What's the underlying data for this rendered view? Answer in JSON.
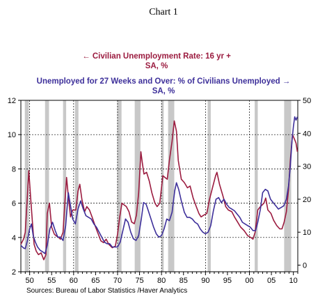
{
  "caption": "Chart 1",
  "source": "Sources:  Bureau of Labor Statistics /Haver Analytics",
  "chart_data": {
    "type": "line",
    "x_range": [
      1948,
      2011
    ],
    "x_ticks": [
      50,
      55,
      60,
      65,
      70,
      75,
      80,
      85,
      90,
      95,
      "00",
      "05",
      10
    ],
    "x_tick_values": [
      1950,
      1955,
      1960,
      1965,
      1970,
      1975,
      1980,
      1985,
      1990,
      1995,
      2000,
      2005,
      2010
    ],
    "y_left": {
      "range": [
        2,
        12
      ],
      "ticks": [
        2,
        4,
        6,
        8,
        10,
        12
      ]
    },
    "y_right": {
      "range": [
        -2,
        50
      ],
      "ticks": [
        0,
        10,
        20,
        30,
        40,
        50
      ]
    },
    "grid": "dashed",
    "recessions": [
      [
        1948.9,
        1949.8
      ],
      [
        1953.5,
        1954.4
      ],
      [
        1957.6,
        1958.3
      ],
      [
        1960.3,
        1961.1
      ],
      [
        1969.9,
        1970.9
      ],
      [
        1973.9,
        1975.2
      ],
      [
        1980.0,
        1980.5
      ],
      [
        1981.5,
        1982.9
      ],
      [
        1990.5,
        1991.2
      ],
      [
        2001.2,
        2001.9
      ],
      [
        2007.9,
        2009.5
      ]
    ],
    "series": [
      {
        "name": "Civilian Unemployment Rate: 16 yr +",
        "name_line2": "SA, %",
        "axis": "left",
        "color": "#9b1b3f",
        "points": [
          [
            1948.0,
            3.6
          ],
          [
            1948.6,
            3.9
          ],
          [
            1949.0,
            4.3
          ],
          [
            1949.5,
            6.5
          ],
          [
            1949.8,
            7.9
          ],
          [
            1950.2,
            6.4
          ],
          [
            1950.6,
            5.0
          ],
          [
            1951.0,
            3.6
          ],
          [
            1951.5,
            3.2
          ],
          [
            1952.0,
            3.0
          ],
          [
            1952.6,
            3.1
          ],
          [
            1953.2,
            2.7
          ],
          [
            1953.7,
            3.0
          ],
          [
            1954.0,
            5.4
          ],
          [
            1954.5,
            6.0
          ],
          [
            1955.0,
            4.6
          ],
          [
            1955.6,
            4.2
          ],
          [
            1956.0,
            4.1
          ],
          [
            1956.6,
            4.0
          ],
          [
            1957.0,
            3.9
          ],
          [
            1957.6,
            4.3
          ],
          [
            1958.0,
            6.0
          ],
          [
            1958.4,
            7.5
          ],
          [
            1958.8,
            6.4
          ],
          [
            1959.3,
            5.2
          ],
          [
            1959.8,
            5.6
          ],
          [
            1960.5,
            5.6
          ],
          [
            1961.0,
            6.7
          ],
          [
            1961.4,
            7.1
          ],
          [
            1961.9,
            6.2
          ],
          [
            1962.5,
            5.5
          ],
          [
            1963.0,
            5.8
          ],
          [
            1963.6,
            5.6
          ],
          [
            1964.2,
            5.2
          ],
          [
            1965.0,
            4.6
          ],
          [
            1965.6,
            4.2
          ],
          [
            1966.2,
            3.8
          ],
          [
            1966.8,
            3.7
          ],
          [
            1967.4,
            3.9
          ],
          [
            1968.0,
            3.6
          ],
          [
            1968.8,
            3.4
          ],
          [
            1969.5,
            3.5
          ],
          [
            1970.0,
            4.2
          ],
          [
            1970.5,
            5.2
          ],
          [
            1971.0,
            6.0
          ],
          [
            1971.5,
            5.9
          ],
          [
            1972.0,
            5.8
          ],
          [
            1972.6,
            5.5
          ],
          [
            1973.2,
            4.9
          ],
          [
            1973.8,
            4.8
          ],
          [
            1974.3,
            5.3
          ],
          [
            1974.8,
            6.6
          ],
          [
            1975.3,
            9.0
          ],
          [
            1975.6,
            8.4
          ],
          [
            1976.0,
            7.7
          ],
          [
            1976.6,
            7.8
          ],
          [
            1977.2,
            7.3
          ],
          [
            1977.8,
            6.6
          ],
          [
            1978.5,
            6.0
          ],
          [
            1979.0,
            5.8
          ],
          [
            1979.6,
            6.0
          ],
          [
            1980.3,
            7.6
          ],
          [
            1980.8,
            7.5
          ],
          [
            1981.3,
            7.4
          ],
          [
            1981.8,
            8.5
          ],
          [
            1982.4,
            9.6
          ],
          [
            1982.9,
            10.8
          ],
          [
            1983.4,
            10.2
          ],
          [
            1983.8,
            8.5
          ],
          [
            1984.5,
            7.4
          ],
          [
            1985.2,
            7.2
          ],
          [
            1985.9,
            6.9
          ],
          [
            1986.5,
            7.0
          ],
          [
            1987.2,
            6.3
          ],
          [
            1987.9,
            5.8
          ],
          [
            1988.5,
            5.4
          ],
          [
            1989.0,
            5.2
          ],
          [
            1989.6,
            5.3
          ],
          [
            1990.3,
            5.4
          ],
          [
            1990.9,
            6.2
          ],
          [
            1991.6,
            6.9
          ],
          [
            1992.3,
            7.6
          ],
          [
            1992.6,
            7.8
          ],
          [
            1993.2,
            7.1
          ],
          [
            1994.0,
            6.4
          ],
          [
            1994.6,
            5.8
          ],
          [
            1995.2,
            5.6
          ],
          [
            1996.0,
            5.5
          ],
          [
            1996.6,
            5.2
          ],
          [
            1997.3,
            4.9
          ],
          [
            1998.0,
            4.6
          ],
          [
            1998.8,
            4.4
          ],
          [
            1999.6,
            4.1
          ],
          [
            2000.3,
            4.0
          ],
          [
            2000.8,
            3.9
          ],
          [
            2001.3,
            4.3
          ],
          [
            2001.9,
            5.6
          ],
          [
            2002.5,
            5.8
          ],
          [
            2003.3,
            6.0
          ],
          [
            2003.7,
            6.3
          ],
          [
            2004.2,
            5.6
          ],
          [
            2004.9,
            5.4
          ],
          [
            2005.5,
            5.0
          ],
          [
            2006.2,
            4.7
          ],
          [
            2006.9,
            4.5
          ],
          [
            2007.4,
            4.5
          ],
          [
            2007.9,
            4.9
          ],
          [
            2008.4,
            5.5
          ],
          [
            2008.9,
            6.8
          ],
          [
            2009.3,
            8.5
          ],
          [
            2009.8,
            10.0
          ],
          [
            2010.3,
            9.7
          ],
          [
            2010.6,
            9.5
          ],
          [
            2010.9,
            9.0
          ]
        ]
      },
      {
        "name": "Unemployed for 27 Weeks and Over: % of Civilians Unemployed",
        "name_line2": "SA, %",
        "axis": "right",
        "color": "#3d2f9a",
        "points": [
          [
            1948.0,
            6.0
          ],
          [
            1948.6,
            5.2
          ],
          [
            1949.0,
            5.0
          ],
          [
            1949.5,
            7.5
          ],
          [
            1950.0,
            11.0
          ],
          [
            1950.4,
            12.5
          ],
          [
            1950.8,
            9.0
          ],
          [
            1951.3,
            7.0
          ],
          [
            1951.8,
            5.5
          ],
          [
            1952.4,
            4.5
          ],
          [
            1953.0,
            4.0
          ],
          [
            1953.5,
            3.5
          ],
          [
            1954.0,
            6.0
          ],
          [
            1954.6,
            11.0
          ],
          [
            1955.2,
            13.0
          ],
          [
            1955.8,
            10.5
          ],
          [
            1956.4,
            8.5
          ],
          [
            1957.0,
            8.5
          ],
          [
            1957.6,
            7.5
          ],
          [
            1958.2,
            12.0
          ],
          [
            1958.8,
            22.0
          ],
          [
            1959.3,
            18.0
          ],
          [
            1959.8,
            14.0
          ],
          [
            1960.4,
            12.5
          ],
          [
            1961.0,
            17.0
          ],
          [
            1961.6,
            19.5
          ],
          [
            1962.2,
            17.0
          ],
          [
            1962.8,
            15.0
          ],
          [
            1963.4,
            14.5
          ],
          [
            1964.0,
            14.0
          ],
          [
            1964.6,
            12.5
          ],
          [
            1965.2,
            11.5
          ],
          [
            1965.8,
            10.0
          ],
          [
            1966.4,
            8.5
          ],
          [
            1967.0,
            7.0
          ],
          [
            1967.6,
            6.5
          ],
          [
            1968.2,
            6.5
          ],
          [
            1968.8,
            5.5
          ],
          [
            1969.4,
            5.5
          ],
          [
            1970.0,
            5.5
          ],
          [
            1970.6,
            7.0
          ],
          [
            1971.2,
            10.5
          ],
          [
            1971.8,
            14.0
          ],
          [
            1972.4,
            13.0
          ],
          [
            1973.0,
            10.0
          ],
          [
            1973.6,
            8.0
          ],
          [
            1974.2,
            7.5
          ],
          [
            1974.8,
            9.0
          ],
          [
            1975.4,
            14.0
          ],
          [
            1975.9,
            19.0
          ],
          [
            1976.5,
            18.5
          ],
          [
            1977.0,
            16.5
          ],
          [
            1977.6,
            14.0
          ],
          [
            1978.2,
            11.5
          ],
          [
            1978.8,
            9.5
          ],
          [
            1979.4,
            8.5
          ],
          [
            1980.0,
            9.0
          ],
          [
            1980.6,
            11.0
          ],
          [
            1981.2,
            14.0
          ],
          [
            1981.8,
            13.5
          ],
          [
            1982.4,
            16.0
          ],
          [
            1983.0,
            22.5
          ],
          [
            1983.4,
            25.0
          ],
          [
            1983.9,
            23.0
          ],
          [
            1984.5,
            19.5
          ],
          [
            1985.2,
            16.0
          ],
          [
            1985.8,
            14.5
          ],
          [
            1986.4,
            14.5
          ],
          [
            1987.0,
            14.0
          ],
          [
            1987.6,
            13.0
          ],
          [
            1988.2,
            12.5
          ],
          [
            1988.8,
            11.0
          ],
          [
            1989.4,
            10.0
          ],
          [
            1990.0,
            9.5
          ],
          [
            1990.6,
            10.0
          ],
          [
            1991.2,
            12.0
          ],
          [
            1991.8,
            16.5
          ],
          [
            1992.4,
            20.0
          ],
          [
            1993.0,
            20.5
          ],
          [
            1993.6,
            19.0
          ],
          [
            1994.2,
            20.0
          ],
          [
            1994.8,
            18.5
          ],
          [
            1995.4,
            17.5
          ],
          [
            1996.0,
            17.0
          ],
          [
            1996.6,
            16.5
          ],
          [
            1997.2,
            15.5
          ],
          [
            1997.8,
            14.5
          ],
          [
            1998.4,
            13.0
          ],
          [
            1999.0,
            12.5
          ],
          [
            1999.6,
            12.0
          ],
          [
            2000.2,
            11.5
          ],
          [
            2000.8,
            10.5
          ],
          [
            2001.4,
            10.5
          ],
          [
            2001.9,
            13.0
          ],
          [
            2002.5,
            17.0
          ],
          [
            2003.0,
            22.0
          ],
          [
            2003.6,
            23.0
          ],
          [
            2004.2,
            22.5
          ],
          [
            2004.8,
            20.0
          ],
          [
            2005.4,
            19.0
          ],
          [
            2006.0,
            18.0
          ],
          [
            2006.6,
            17.0
          ],
          [
            2007.2,
            17.5
          ],
          [
            2007.8,
            18.0
          ],
          [
            2008.4,
            20.0
          ],
          [
            2008.9,
            24.0
          ],
          [
            2009.3,
            30.0
          ],
          [
            2009.7,
            38.0
          ],
          [
            2010.0,
            42.0
          ],
          [
            2010.3,
            45.0
          ],
          [
            2010.6,
            44.0
          ],
          [
            2010.9,
            45.0
          ]
        ]
      }
    ]
  }
}
